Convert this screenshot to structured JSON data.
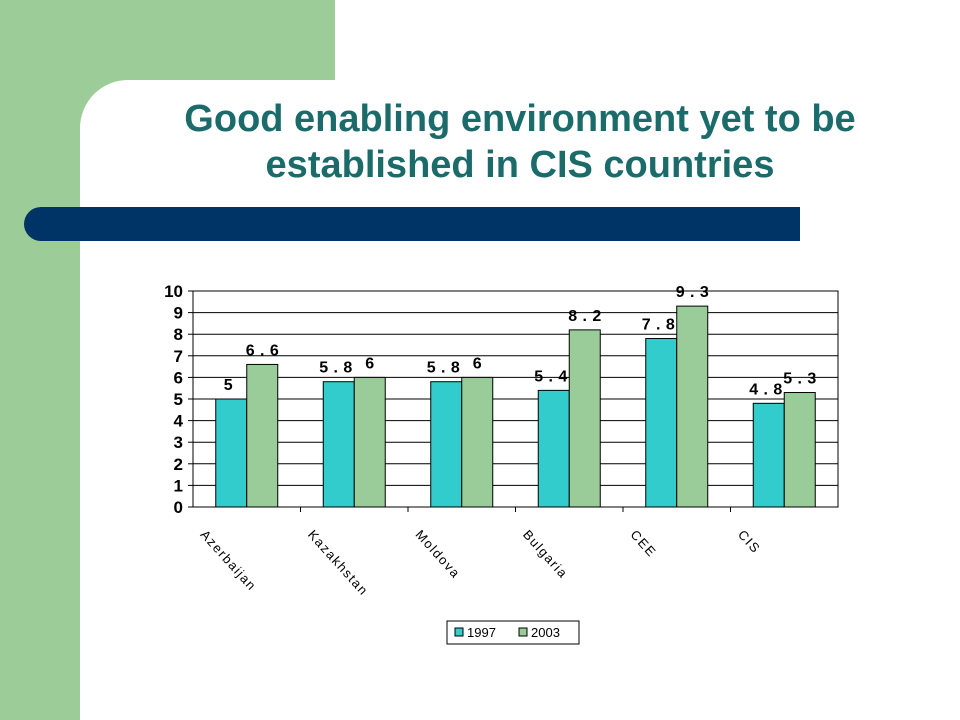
{
  "slide": {
    "title_line1": "Good enabling environment yet to be",
    "title_line2": "established in CIS countries"
  },
  "colors": {
    "side_panel": "#9ccc98",
    "title_text": "#1b6b6b",
    "title_bar": "#003366"
  },
  "chart_data": {
    "type": "bar",
    "categories": [
      "Azerbaijan",
      "Kazakhstan",
      "Moldova",
      "Bulgaria",
      "CEE",
      "CIS"
    ],
    "series": [
      {
        "name": "1997",
        "values": [
          5,
          5.8,
          5.8,
          5.4,
          7.8,
          4.8
        ],
        "color": "#33cccc"
      },
      {
        "name": "2003",
        "values": [
          6.6,
          6,
          6,
          8.2,
          9.3,
          5.3
        ],
        "color": "#99cc99"
      }
    ],
    "yticks": [
      "0",
      "1",
      "2",
      "3",
      "4",
      "5",
      "6",
      "7",
      "8",
      "9",
      "10"
    ],
    "ylim": [
      0,
      10
    ],
    "grid": true,
    "legend_position": "bottom"
  }
}
